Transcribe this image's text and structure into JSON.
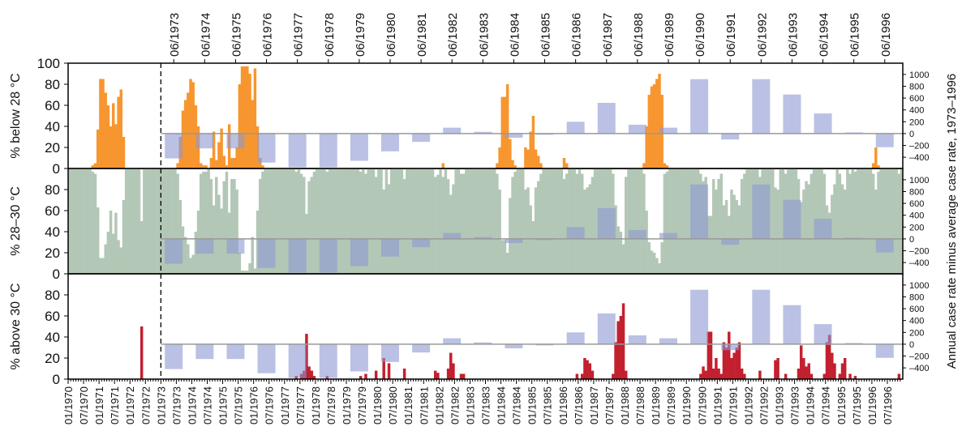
{
  "chart_data": {
    "type": "bar",
    "categories": [
      "01/1970",
      null,
      null,
      null,
      null,
      null,
      "07/1970",
      null,
      null,
      null,
      null,
      null,
      "01/1971",
      null,
      null,
      null,
      null,
      null,
      "07/1971",
      null,
      null,
      null,
      null,
      null,
      "01/1972",
      null,
      null,
      null,
      null,
      null,
      "07/1972",
      null,
      null,
      null,
      null,
      null,
      "01/1973",
      null,
      null,
      null,
      null,
      null,
      "07/1973",
      null,
      null,
      null,
      null,
      null,
      "01/1974",
      null,
      null,
      null,
      null,
      null,
      "07/1974",
      null,
      null,
      null,
      null,
      null,
      "01/1975",
      null,
      null,
      null,
      null,
      null,
      "07/1975",
      null,
      null,
      null,
      null,
      null,
      "01/1976",
      null,
      null,
      null,
      null,
      null,
      "07/1976",
      null,
      null,
      null,
      null,
      null,
      "01/1977",
      null,
      null,
      null,
      null,
      null,
      "07/1977",
      null,
      null,
      null,
      null,
      null,
      "01/1978",
      null,
      null,
      null,
      null,
      null,
      "07/1978",
      null,
      null,
      null,
      null,
      null,
      "01/1979",
      null,
      null,
      null,
      null,
      null,
      "07/1979",
      null,
      null,
      null,
      null,
      null,
      "01/1980",
      null,
      null,
      null,
      null,
      null,
      "07/1980",
      null,
      null,
      null,
      null,
      null,
      "01/1981",
      null,
      null,
      null,
      null,
      null,
      "07/1981",
      null,
      null,
      null,
      null,
      null,
      "01/1982",
      null,
      null,
      null,
      null,
      null,
      "07/1982",
      null,
      null,
      null,
      null,
      null,
      "01/1983",
      null,
      null,
      null,
      null,
      null,
      "07/1983",
      null,
      null,
      null,
      null,
      null,
      "01/1984",
      null,
      null,
      null,
      null,
      null,
      "07/1984",
      null,
      null,
      null,
      null,
      null,
      "01/1985",
      null,
      null,
      null,
      null,
      null,
      "07/1985",
      null,
      null,
      null,
      null,
      null,
      "01/1986",
      null,
      null,
      null,
      null,
      null,
      "07/1986",
      null,
      null,
      null,
      null,
      null,
      "01/1987",
      null,
      null,
      null,
      null,
      null,
      "07/1987",
      null,
      null,
      null,
      null,
      null,
      "01/1988",
      null,
      null,
      null,
      null,
      null,
      "07/1988",
      null,
      null,
      null,
      null,
      null,
      "01/1989",
      null,
      null,
      null,
      null,
      null,
      "07/1989",
      null,
      null,
      null,
      null,
      null,
      "01/1990",
      null,
      null,
      null,
      null,
      null,
      "07/1990",
      null,
      null,
      null,
      null,
      null,
      "01/1991",
      null,
      null,
      null,
      null,
      null,
      "07/1991",
      null,
      null,
      null,
      null,
      null,
      "01/1992",
      null,
      null,
      null,
      null,
      null,
      "07/1992",
      null,
      null,
      null,
      null,
      null,
      "01/1993",
      null,
      null,
      null,
      null,
      null,
      "07/1993",
      null,
      null,
      null,
      null,
      null,
      "01/1994",
      null,
      null,
      null,
      null,
      null,
      "07/1994",
      null,
      null,
      null,
      null,
      null,
      "01/1995",
      null,
      null,
      null,
      null,
      null,
      "07/1995",
      null,
      null,
      null,
      null,
      null,
      "01/1996",
      null,
      null,
      null,
      null,
      null,
      "07/1996",
      null,
      null,
      null,
      null,
      null
    ],
    "ylim": [
      0,
      100
    ],
    "reference_line": "01/1973",
    "panels": [
      {
        "ylabel": "% below 28 °C",
        "color": "#f7962f",
        "yticks": [
          0,
          20,
          40,
          60,
          80,
          100
        ],
        "values": [
          0,
          0,
          0,
          0,
          0,
          0,
          0,
          0,
          0,
          3,
          5,
          37,
          85,
          85,
          72,
          60,
          40,
          62,
          42,
          68,
          75,
          30,
          0,
          0,
          0,
          0,
          0,
          0,
          0,
          0,
          0,
          0,
          0,
          0,
          0,
          0,
          0,
          0,
          0,
          0,
          0,
          0,
          5,
          30,
          55,
          65,
          72,
          85,
          82,
          60,
          40,
          5,
          3,
          3,
          0,
          10,
          35,
          8,
          25,
          38,
          12,
          3,
          42,
          10,
          10,
          20,
          80,
          97,
          97,
          97,
          90,
          65,
          95,
          40,
          10,
          3,
          0,
          0,
          0,
          0,
          0,
          0,
          0,
          0,
          0,
          0,
          0,
          0,
          0,
          0,
          0,
          0,
          0,
          0,
          0,
          0,
          0,
          0,
          0,
          0,
          0,
          0,
          0,
          0,
          0,
          0,
          0,
          0,
          0,
          0,
          0,
          0,
          0,
          0,
          0,
          0,
          0,
          0,
          0,
          0,
          0,
          0,
          0,
          0,
          0,
          0,
          0,
          0,
          0,
          0,
          0,
          0,
          0,
          0,
          0,
          0,
          0,
          0,
          0,
          0,
          0,
          0,
          0,
          0,
          0,
          5,
          0,
          0,
          0,
          0,
          0,
          0,
          0,
          0,
          0,
          0,
          0,
          0,
          0,
          0,
          0,
          0,
          0,
          0,
          0,
          0,
          5,
          20,
          68,
          68,
          80,
          28,
          8,
          3,
          0,
          0,
          0,
          20,
          18,
          35,
          50,
          18,
          12,
          5,
          0,
          0,
          0,
          0,
          0,
          0,
          0,
          0,
          10,
          5,
          0,
          0,
          0,
          0,
          0,
          0,
          0,
          0,
          0,
          0,
          0,
          0,
          0,
          0,
          0,
          0,
          0,
          0,
          0,
          0,
          0,
          0,
          0,
          0,
          0,
          0,
          0,
          0,
          0,
          5,
          40,
          70,
          78,
          80,
          85,
          90,
          70,
          5,
          3,
          0,
          0,
          0,
          0,
          0,
          0,
          0,
          0,
          0,
          0,
          0,
          0,
          0,
          0,
          0,
          0,
          0,
          0,
          0,
          0,
          0,
          0,
          0,
          0,
          0,
          0,
          0,
          0,
          0,
          0,
          0,
          0,
          0,
          0,
          0,
          0,
          0,
          0,
          0,
          0,
          0,
          0,
          0,
          0,
          0,
          0,
          0,
          0,
          0,
          0,
          0,
          0,
          0,
          0,
          0,
          0,
          0,
          0,
          0,
          0,
          0,
          0,
          0,
          0,
          0,
          0,
          0,
          0,
          0,
          0,
          0,
          0,
          0,
          0,
          0,
          0,
          0,
          0,
          0,
          5,
          20,
          3,
          0,
          0,
          0,
          0,
          0,
          0,
          0,
          0,
          0
        ]
      },
      {
        "ylabel": "% 28–30 °C",
        "color": "#b3c7b6",
        "yticks": [
          0,
          20,
          40,
          60,
          80
        ],
        "values": [
          100,
          100,
          100,
          100,
          100,
          100,
          100,
          100,
          100,
          97,
          95,
          63,
          15,
          15,
          28,
          40,
          60,
          38,
          58,
          32,
          25,
          70,
          100,
          100,
          100,
          100,
          100,
          100,
          50,
          100,
          100,
          100,
          100,
          100,
          100,
          100,
          100,
          100,
          100,
          100,
          100,
          100,
          95,
          70,
          45,
          35,
          28,
          15,
          18,
          40,
          60,
          95,
          97,
          97,
          100,
          90,
          65,
          92,
          75,
          62,
          88,
          97,
          58,
          90,
          90,
          80,
          20,
          3,
          3,
          3,
          10,
          35,
          5,
          60,
          90,
          97,
          100,
          100,
          100,
          100,
          100,
          100,
          100,
          100,
          100,
          100,
          100,
          100,
          97,
          100,
          95,
          92,
          57,
          88,
          92,
          97,
          100,
          100,
          100,
          100,
          97,
          100,
          100,
          100,
          100,
          100,
          100,
          100,
          100,
          100,
          100,
          100,
          100,
          97,
          100,
          95,
          100,
          100,
          100,
          92,
          100,
          100,
          80,
          100,
          85,
          100,
          100,
          100,
          100,
          100,
          90,
          100,
          100,
          100,
          100,
          100,
          100,
          100,
          100,
          100,
          100,
          100,
          92,
          94,
          100,
          92,
          100,
          90,
          75,
          85,
          100,
          100,
          95,
          95,
          100,
          100,
          100,
          100,
          100,
          100,
          100,
          100,
          100,
          100,
          100,
          100,
          95,
          80,
          32,
          32,
          20,
          72,
          92,
          97,
          100,
          100,
          100,
          80,
          82,
          65,
          50,
          82,
          88,
          95,
          100,
          100,
          100,
          100,
          100,
          100,
          100,
          100,
          90,
          95,
          100,
          100,
          100,
          95,
          100,
          95,
          80,
          82,
          85,
          92,
          100,
          100,
          100,
          100,
          100,
          100,
          100,
          95,
          65,
          45,
          40,
          28,
          92,
          100,
          100,
          100,
          100,
          100,
          100,
          95,
          60,
          30,
          22,
          20,
          15,
          10,
          30,
          95,
          97,
          100,
          100,
          100,
          100,
          100,
          100,
          100,
          100,
          100,
          100,
          100,
          100,
          95,
          88,
          92,
          55,
          55,
          90,
          80,
          90,
          95,
          65,
          70,
          55,
          80,
          75,
          70,
          65,
          90,
          95,
          100,
          100,
          100,
          100,
          100,
          92,
          100,
          100,
          100,
          100,
          100,
          82,
          80,
          100,
          100,
          95,
          100,
          100,
          100,
          100,
          90,
          68,
          80,
          88,
          85,
          95,
          100,
          100,
          100,
          100,
          95,
          65,
          58,
          75,
          85,
          100,
          95,
          85,
          80,
          100,
          95,
          100,
          97,
          100,
          100,
          100,
          100,
          100,
          100,
          95,
          80,
          97,
          100,
          100,
          100,
          100,
          100,
          100,
          100,
          95,
          100
        ]
      },
      {
        "ylabel": "% above 30 °C",
        "color": "#c3202f",
        "yticks": [
          0,
          20,
          40,
          60,
          80
        ],
        "values": [
          0,
          0,
          0,
          0,
          0,
          0,
          0,
          0,
          0,
          0,
          0,
          0,
          0,
          0,
          0,
          0,
          0,
          0,
          0,
          0,
          0,
          0,
          0,
          0,
          0,
          0,
          0,
          0,
          50,
          0,
          0,
          0,
          0,
          0,
          0,
          0,
          0,
          0,
          0,
          0,
          0,
          0,
          0,
          0,
          0,
          0,
          0,
          0,
          0,
          0,
          0,
          0,
          0,
          0,
          0,
          0,
          0,
          0,
          0,
          0,
          0,
          0,
          0,
          0,
          0,
          0,
          0,
          0,
          0,
          0,
          0,
          0,
          0,
          0,
          0,
          0,
          0,
          0,
          0,
          0,
          0,
          0,
          0,
          0,
          0,
          0,
          0,
          0,
          3,
          0,
          5,
          8,
          43,
          12,
          8,
          3,
          0,
          0,
          0,
          0,
          3,
          0,
          0,
          0,
          0,
          0,
          0,
          0,
          0,
          0,
          0,
          0,
          0,
          3,
          0,
          5,
          0,
          0,
          0,
          8,
          0,
          0,
          20,
          0,
          15,
          0,
          0,
          0,
          0,
          0,
          10,
          0,
          0,
          0,
          0,
          0,
          0,
          0,
          0,
          0,
          0,
          0,
          8,
          6,
          0,
          0,
          0,
          10,
          25,
          15,
          0,
          0,
          5,
          5,
          0,
          0,
          0,
          0,
          0,
          0,
          0,
          0,
          0,
          0,
          0,
          0,
          0,
          0,
          0,
          0,
          0,
          0,
          0,
          0,
          0,
          0,
          0,
          0,
          0,
          0,
          0,
          0,
          0,
          0,
          0,
          0,
          0,
          0,
          0,
          0,
          0,
          0,
          0,
          0,
          0,
          0,
          0,
          5,
          0,
          5,
          20,
          18,
          15,
          8,
          0,
          0,
          0,
          0,
          0,
          0,
          0,
          5,
          35,
          55,
          60,
          72,
          8,
          0,
          0,
          0,
          0,
          0,
          0,
          0,
          0,
          0,
          0,
          0,
          0,
          0,
          0,
          0,
          0,
          0,
          0,
          0,
          0,
          0,
          0,
          0,
          0,
          0,
          0,
          0,
          0,
          5,
          12,
          8,
          45,
          45,
          10,
          20,
          10,
          5,
          35,
          30,
          45,
          20,
          25,
          30,
          35,
          10,
          5,
          0,
          0,
          0,
          0,
          0,
          8,
          0,
          0,
          0,
          0,
          0,
          18,
          20,
          0,
          0,
          5,
          0,
          0,
          0,
          0,
          10,
          32,
          20,
          12,
          15,
          5,
          0,
          0,
          0,
          0,
          5,
          35,
          42,
          25,
          15,
          0,
          5,
          15,
          20,
          0,
          5,
          0,
          3,
          0,
          0,
          0,
          0,
          0,
          0,
          0,
          0,
          0,
          0,
          0,
          0,
          0,
          0,
          0,
          0,
          5,
          0
        ]
      }
    ],
    "annual": {
      "y2label": "Annual case rate minus average case rate, 1973–1996",
      "color": "rgba(140,152,210,0.6)",
      "y2lim": [
        -590,
        1190
      ],
      "y2ticks": [
        {
          "value": -400,
          "label": "–400"
        },
        {
          "value": -200,
          "label": "–200"
        },
        0,
        200,
        400,
        600,
        800,
        1000
      ],
      "categories": [
        "06/1973",
        "06/1974",
        "06/1975",
        "06/1976",
        "06/1977",
        "06/1978",
        "06/1979",
        "06/1980",
        "06/1981",
        "06/1982",
        "06/1983",
        "06/1984",
        "06/1985",
        "06/1986",
        "06/1987",
        "06/1988",
        "06/1989",
        "06/1990",
        "06/1991",
        "06/1992",
        "06/1993",
        "06/1994",
        "06/1995",
        "06/1996"
      ],
      "values": [
        -420,
        -250,
        -250,
        -490,
        -570,
        -570,
        -460,
        -300,
        -140,
        100,
        30,
        -70,
        -20,
        200,
        520,
        150,
        100,
        920,
        -100,
        920,
        660,
        340,
        20,
        -230
      ]
    }
  }
}
